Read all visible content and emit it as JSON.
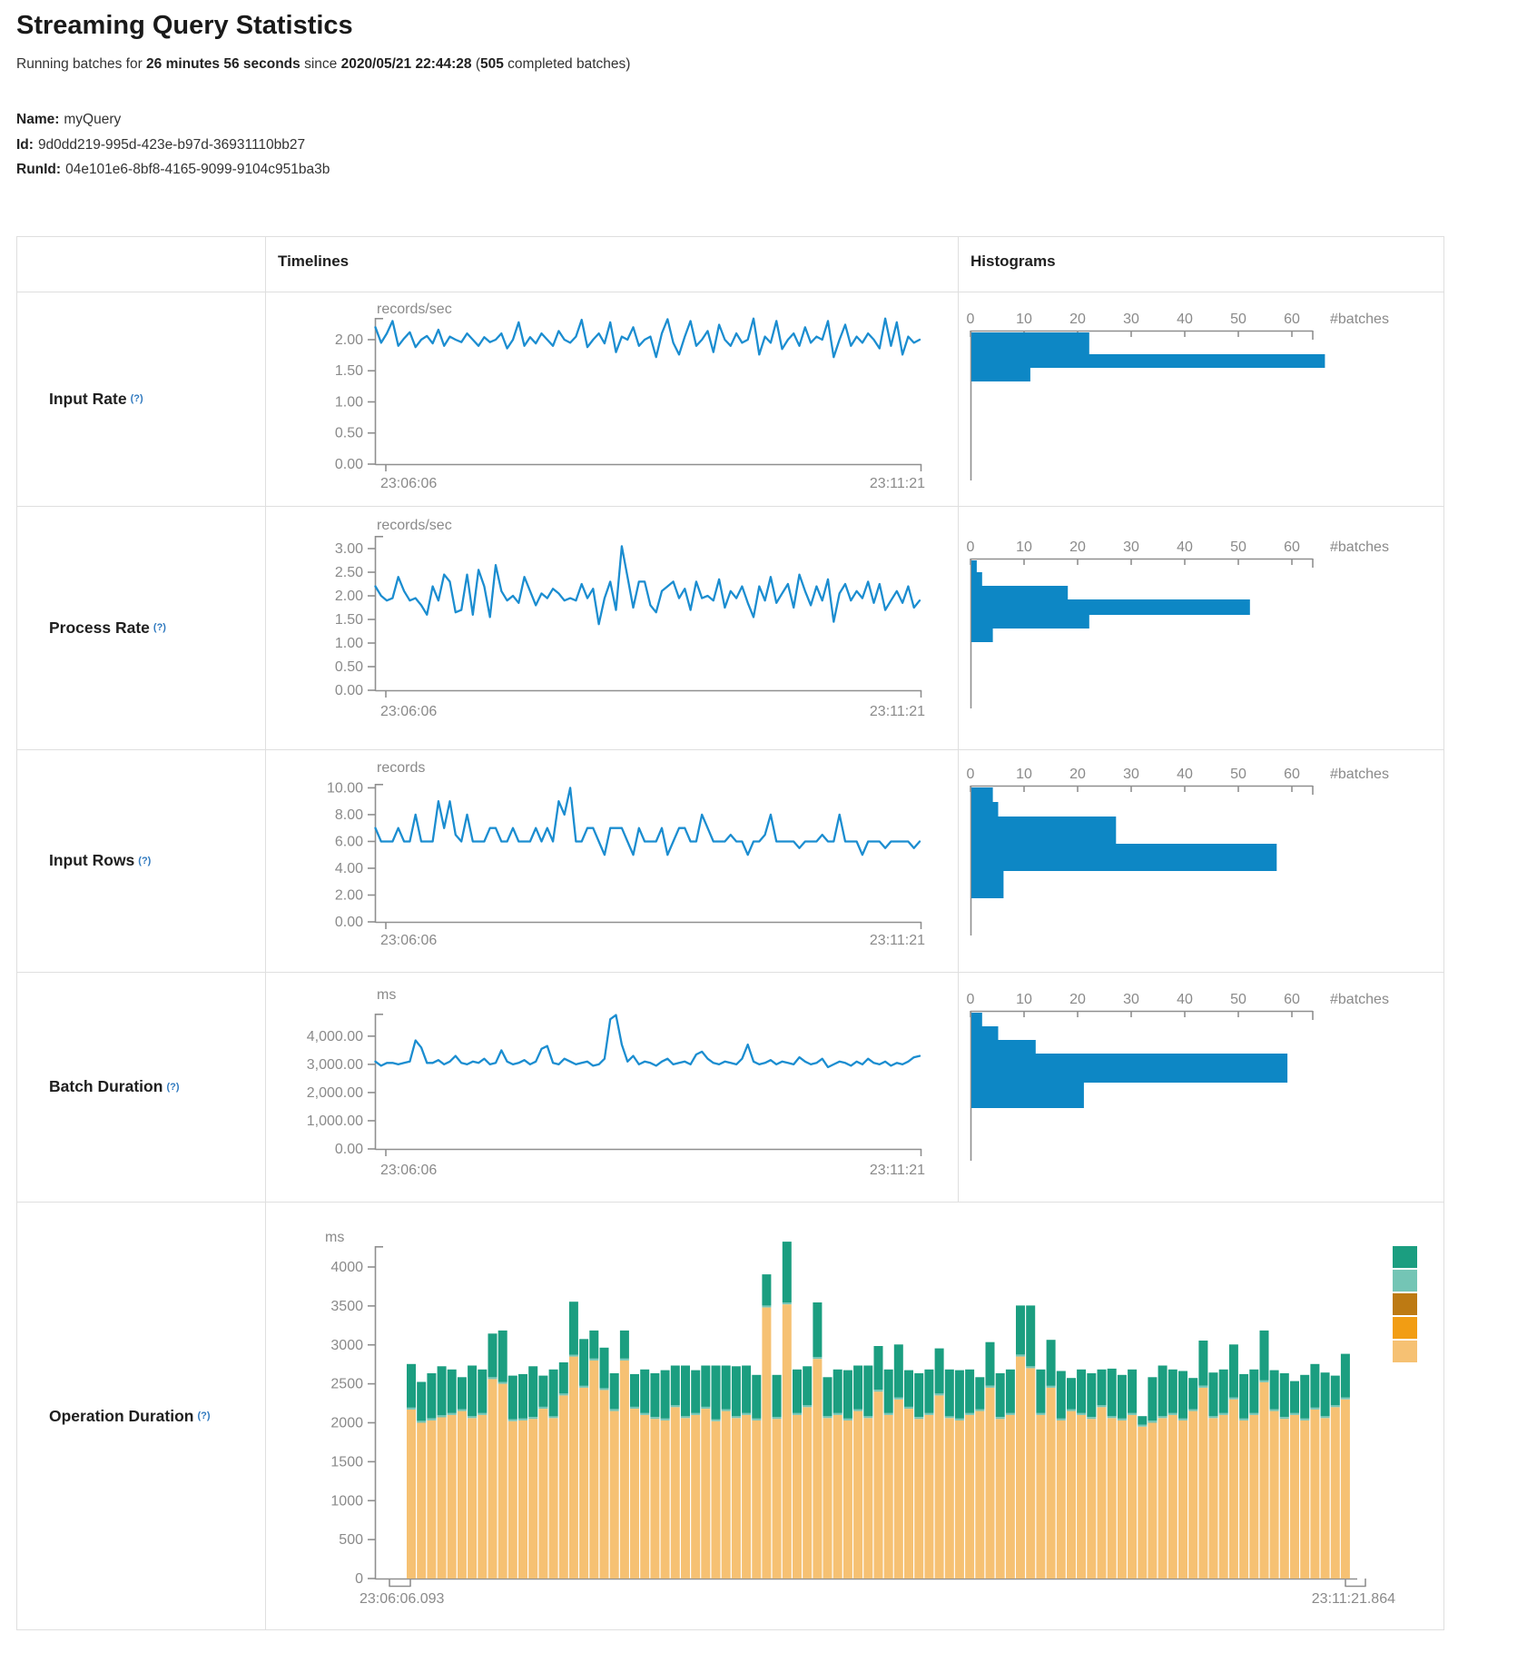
{
  "header": {
    "title": "Streaming Query Statistics",
    "subtitle": {
      "prefix": "Running batches for ",
      "duration": "26 minutes 56 seconds",
      "mid": " since ",
      "start_time": "2020/05/21 22:44:28",
      "paren_open": " (",
      "batch_count": "505",
      "paren_close": " completed batches)"
    },
    "meta": {
      "name_label": "Name:",
      "name": "myQuery",
      "id_label": "Id:",
      "id": "9d0dd219-995d-423e-b97d-36931110bb27",
      "runid_label": "RunId:",
      "runid": "04e101e6-8bf8-4165-9099-9104c951ba3b"
    }
  },
  "table": {
    "col_timelines": "Timelines",
    "col_histograms": "Histograms",
    "help_marker": "(?)",
    "rows": [
      {
        "label": "Input Rate"
      },
      {
        "label": "Process Rate"
      },
      {
        "label": "Input Rows"
      },
      {
        "label": "Batch Duration"
      },
      {
        "label": "Operation Duration"
      }
    ]
  },
  "colors": {
    "line": "#1b8dd0",
    "bar": "#0d87c5",
    "axis": "#8f8f8f",
    "tick_text": "#8a8a8a",
    "legend": [
      "#1b9e80",
      "#74c5b5",
      "#bd7a13",
      "#f29d13",
      "#f6c173"
    ]
  },
  "chart_data": [
    {
      "id": "input-rate-timeline",
      "type": "line",
      "ylabel": "records/sec",
      "x_start": "23:06:06",
      "x_end": "23:11:21",
      "ylim": [
        0,
        2.35
      ],
      "yticks": [
        [
          "2.00",
          2
        ],
        [
          "1.50",
          1.5
        ],
        [
          "1.00",
          1
        ],
        [
          "0.50",
          0.5
        ],
        [
          "0.00",
          0
        ]
      ],
      "values": [
        2.2,
        1.95,
        2.1,
        2.3,
        1.9,
        2.02,
        2.12,
        1.88,
        2.0,
        2.06,
        1.94,
        2.16,
        1.9,
        2.05,
        2.0,
        1.96,
        2.1,
        2.0,
        1.9,
        2.04,
        1.96,
        2.0,
        2.1,
        1.86,
        2.0,
        2.28,
        1.9,
        2.04,
        1.94,
        2.1,
        2.0,
        1.9,
        2.14,
        2.0,
        1.95,
        2.05,
        2.32,
        1.88,
        2.0,
        2.1,
        1.94,
        2.28,
        1.8,
        2.05,
        2.0,
        2.2,
        1.9,
        2.0,
        2.05,
        1.72,
        2.1,
        2.33,
        1.95,
        1.76,
        2.05,
        2.3,
        1.9,
        2.0,
        2.14,
        1.8,
        2.24,
        2.0,
        1.9,
        2.1,
        1.95,
        2.0,
        2.34,
        1.76,
        2.05,
        1.95,
        2.3,
        1.85,
        2.0,
        2.1,
        1.9,
        2.2,
        1.95,
        2.05,
        2.0,
        2.3,
        1.72,
        2.0,
        2.24,
        1.9,
        2.05,
        1.95,
        2.1,
        2.0,
        1.86,
        2.34,
        1.9,
        2.28,
        1.76,
        2.05,
        1.95,
        2.0
      ]
    },
    {
      "id": "input-rate-histogram",
      "type": "bar",
      "xlabel": "#batches",
      "xticks": [
        0,
        10,
        20,
        30,
        40,
        50,
        60
      ],
      "bars": [
        {
          "count": 22,
          "h": 24
        },
        {
          "count": 66,
          "h": 15
        },
        {
          "count": 11,
          "h": 15
        }
      ]
    },
    {
      "id": "process-rate-timeline",
      "type": "line",
      "ylabel": "records/sec",
      "x_start": "23:06:06",
      "x_end": "23:11:21",
      "ylim": [
        0,
        3.27
      ],
      "yticks": [
        [
          "3.00",
          3
        ],
        [
          "2.50",
          2.5
        ],
        [
          "2.00",
          2
        ],
        [
          "1.50",
          1.5
        ],
        [
          "1.00",
          1
        ],
        [
          "0.50",
          0.5
        ],
        [
          "0.00",
          0
        ]
      ],
      "values": [
        2.2,
        2.0,
        1.9,
        1.95,
        2.4,
        2.1,
        1.9,
        1.95,
        1.8,
        1.6,
        2.2,
        1.9,
        2.45,
        2.3,
        1.65,
        1.7,
        2.45,
        1.6,
        2.55,
        2.2,
        1.55,
        2.65,
        2.1,
        1.9,
        2.0,
        1.85,
        2.4,
        2.1,
        1.8,
        2.05,
        1.95,
        2.15,
        2.05,
        1.9,
        1.95,
        1.9,
        2.25,
        1.95,
        2.15,
        1.4,
        1.95,
        2.3,
        1.7,
        3.05,
        2.4,
        1.75,
        2.3,
        2.3,
        1.8,
        1.65,
        2.1,
        2.2,
        2.3,
        1.95,
        2.15,
        1.7,
        2.3,
        1.95,
        2.0,
        1.9,
        2.35,
        1.75,
        2.1,
        1.95,
        2.2,
        1.85,
        1.55,
        2.2,
        1.9,
        2.4,
        1.85,
        2.05,
        2.25,
        1.75,
        2.45,
        2.1,
        1.8,
        2.2,
        1.9,
        2.35,
        1.45,
        2.05,
        2.25,
        1.9,
        2.1,
        1.95,
        2.3,
        1.85,
        2.25,
        1.7,
        1.9,
        2.1,
        1.85,
        2.2,
        1.75,
        1.9
      ]
    },
    {
      "id": "process-rate-histogram",
      "type": "bar",
      "xlabel": "#batches",
      "xticks": [
        0,
        10,
        20,
        30,
        40,
        50,
        60
      ],
      "bars": [
        {
          "count": 1,
          "h": 13
        },
        {
          "count": 2,
          "h": 15
        },
        {
          "count": 18,
          "h": 15
        },
        {
          "count": 52,
          "h": 17
        },
        {
          "count": 22,
          "h": 15
        },
        {
          "count": 4,
          "h": 15
        }
      ]
    },
    {
      "id": "input-rows-timeline",
      "type": "line",
      "ylabel": "records",
      "x_start": "23:06:06",
      "x_end": "23:11:21",
      "ylim": [
        0,
        10.3
      ],
      "yticks": [
        [
          "10.00",
          10
        ],
        [
          "8.00",
          8
        ],
        [
          "6.00",
          6
        ],
        [
          "4.00",
          4
        ],
        [
          "2.00",
          2
        ],
        [
          "0.00",
          0
        ]
      ],
      "values": [
        7,
        6,
        6,
        6,
        7,
        6,
        6,
        8,
        6,
        6,
        6,
        9,
        7,
        9,
        6.5,
        6,
        8,
        6,
        6,
        6,
        7,
        7,
        6,
        6,
        7,
        6,
        6,
        6,
        7,
        6,
        7,
        6,
        9,
        8,
        10,
        6,
        6,
        7,
        7,
        6,
        5,
        7,
        7,
        7,
        6,
        5,
        7,
        6,
        6,
        6,
        7,
        5,
        6,
        7,
        7,
        6,
        6,
        8,
        7,
        6,
        6,
        6,
        6.5,
        6,
        6,
        5,
        6,
        6,
        6.5,
        8,
        6,
        6,
        6,
        6,
        5.5,
        6,
        6,
        6,
        6.5,
        6,
        6,
        8,
        6,
        6,
        6,
        5,
        6,
        6,
        6,
        5.5,
        6,
        6,
        6,
        6,
        5.5,
        6
      ]
    },
    {
      "id": "input-rows-histogram",
      "type": "bar",
      "xlabel": "#batches",
      "xticks": [
        0,
        10,
        20,
        30,
        40,
        50,
        60
      ],
      "bars": [
        {
          "count": 4,
          "h": 16
        },
        {
          "count": 5,
          "h": 16
        },
        {
          "count": 27,
          "h": 30
        },
        {
          "count": 57,
          "h": 30
        },
        {
          "count": 6,
          "h": 30
        }
      ]
    },
    {
      "id": "batch-duration-timeline",
      "type": "line",
      "ylabel": "ms",
      "x_start": "23:06:06",
      "x_end": "23:11:21",
      "ylim": [
        0,
        4800
      ],
      "yticks": [
        [
          "4,000.00",
          4000
        ],
        [
          "3,000.00",
          3000
        ],
        [
          "2,000.00",
          2000
        ],
        [
          "1,000.00",
          1000
        ],
        [
          "0.00",
          0
        ]
      ],
      "values": [
        3100,
        2950,
        3050,
        3050,
        3000,
        3050,
        3100,
        3850,
        3600,
        3050,
        3050,
        3150,
        3000,
        3100,
        3300,
        3050,
        3000,
        3100,
        3050,
        3200,
        3000,
        3050,
        3500,
        3100,
        3000,
        3050,
        3150,
        3000,
        3100,
        3550,
        3650,
        3050,
        3000,
        3200,
        3100,
        3000,
        3050,
        3100,
        2950,
        3000,
        3200,
        4600,
        4750,
        3700,
        3100,
        3300,
        3000,
        3100,
        3050,
        2950,
        3100,
        3200,
        3000,
        3050,
        3100,
        3000,
        3350,
        3450,
        3200,
        3050,
        3000,
        3100,
        3050,
        3000,
        3200,
        3700,
        3100,
        3000,
        3050,
        3150,
        3000,
        3100,
        3050,
        3000,
        3250,
        3100,
        3000,
        3050,
        3200,
        2900,
        3000,
        3100,
        3050,
        2950,
        3100,
        3000,
        3200,
        3050,
        3000,
        3100,
        2950,
        3050,
        3000,
        3100,
        3250,
        3300
      ]
    },
    {
      "id": "batch-duration-histogram",
      "type": "bar",
      "xlabel": "#batches",
      "xticks": [
        0,
        10,
        20,
        30,
        40,
        50,
        60
      ],
      "bars": [
        {
          "count": 2,
          "h": 15
        },
        {
          "count": 5,
          "h": 15
        },
        {
          "count": 12,
          "h": 15
        },
        {
          "count": 59,
          "h": 32
        },
        {
          "count": 21,
          "h": 28
        }
      ]
    },
    {
      "id": "operation-duration-chart",
      "type": "stacked-bar",
      "ylabel": "ms",
      "x_start": "23:06:06.093",
      "x_end": "23:11:21.864",
      "ylim": [
        0,
        4300
      ],
      "yticks": [
        [
          "4000",
          4000
        ],
        [
          "3500",
          3500
        ],
        [
          "3000",
          3000
        ],
        [
          "2500",
          2500
        ],
        [
          "2000",
          2000
        ],
        [
          "1500",
          1500
        ],
        [
          "1000",
          1000
        ],
        [
          "500",
          500
        ],
        [
          "0",
          0
        ]
      ],
      "legend_colors": [
        "#1b9e80",
        "#74c5b5",
        "#bd7a13",
        "#f29d13",
        "#f6c173"
      ],
      "series": [
        {
          "name": "tan-bottom",
          "color": "#f6c173",
          "values": [
            2170,
            2000,
            2030,
            2070,
            2100,
            2150,
            2060,
            2100,
            2560,
            2500,
            2020,
            2030,
            2050,
            2180,
            2060,
            2350,
            2850,
            2450,
            2800,
            2420,
            2150,
            2800,
            2180,
            2100,
            2050,
            2030,
            2200,
            2060,
            2100,
            2180,
            2020,
            2150,
            2060,
            2100,
            2030,
            3480,
            2050,
            3520,
            2100,
            2200,
            2820,
            2060,
            2100,
            2030,
            2150,
            2060,
            2400,
            2100,
            2300,
            2180,
            2050,
            2100,
            2350,
            2060,
            2030,
            2100,
            2150,
            2450,
            2050,
            2100,
            2850,
            2700,
            2100,
            2450,
            2030,
            2150,
            2100,
            2050,
            2200,
            2060,
            2030,
            2100,
            1950,
            2000,
            2060,
            2100,
            2030,
            2150,
            2450,
            2060,
            2100,
            2300,
            2030,
            2100,
            2520,
            2150,
            2050,
            2100,
            2030,
            2170,
            2060,
            2200,
            2300
          ]
        },
        {
          "name": "light-teal-sliver",
          "color": "#74c5b5",
          "constant": 25
        },
        {
          "name": "teal-top",
          "color": "#1b9e80",
          "values": [
            560,
            500,
            580,
            630,
            560,
            410,
            650,
            560,
            560,
            660,
            560,
            570,
            650,
            400,
            600,
            400,
            680,
            600,
            360,
            520,
            460,
            360,
            420,
            560,
            560,
            620,
            510,
            650,
            550,
            530,
            690,
            560,
            640,
            610,
            560,
            400,
            540,
            780,
            560,
            500,
            700,
            500,
            560,
            620,
            560,
            650,
            560,
            560,
            680,
            470,
            560,
            560,
            580,
            600,
            620,
            560,
            410,
            560,
            560,
            560,
            630,
            780,
            560,
            590,
            610,
            400,
            560,
            560,
            460,
            610,
            560,
            560,
            110,
            560,
            650,
            560,
            610,
            400,
            580,
            560,
            560,
            680,
            570,
            560,
            640,
            500,
            560,
            410,
            560,
            560,
            560,
            380,
            560
          ]
        }
      ]
    }
  ]
}
